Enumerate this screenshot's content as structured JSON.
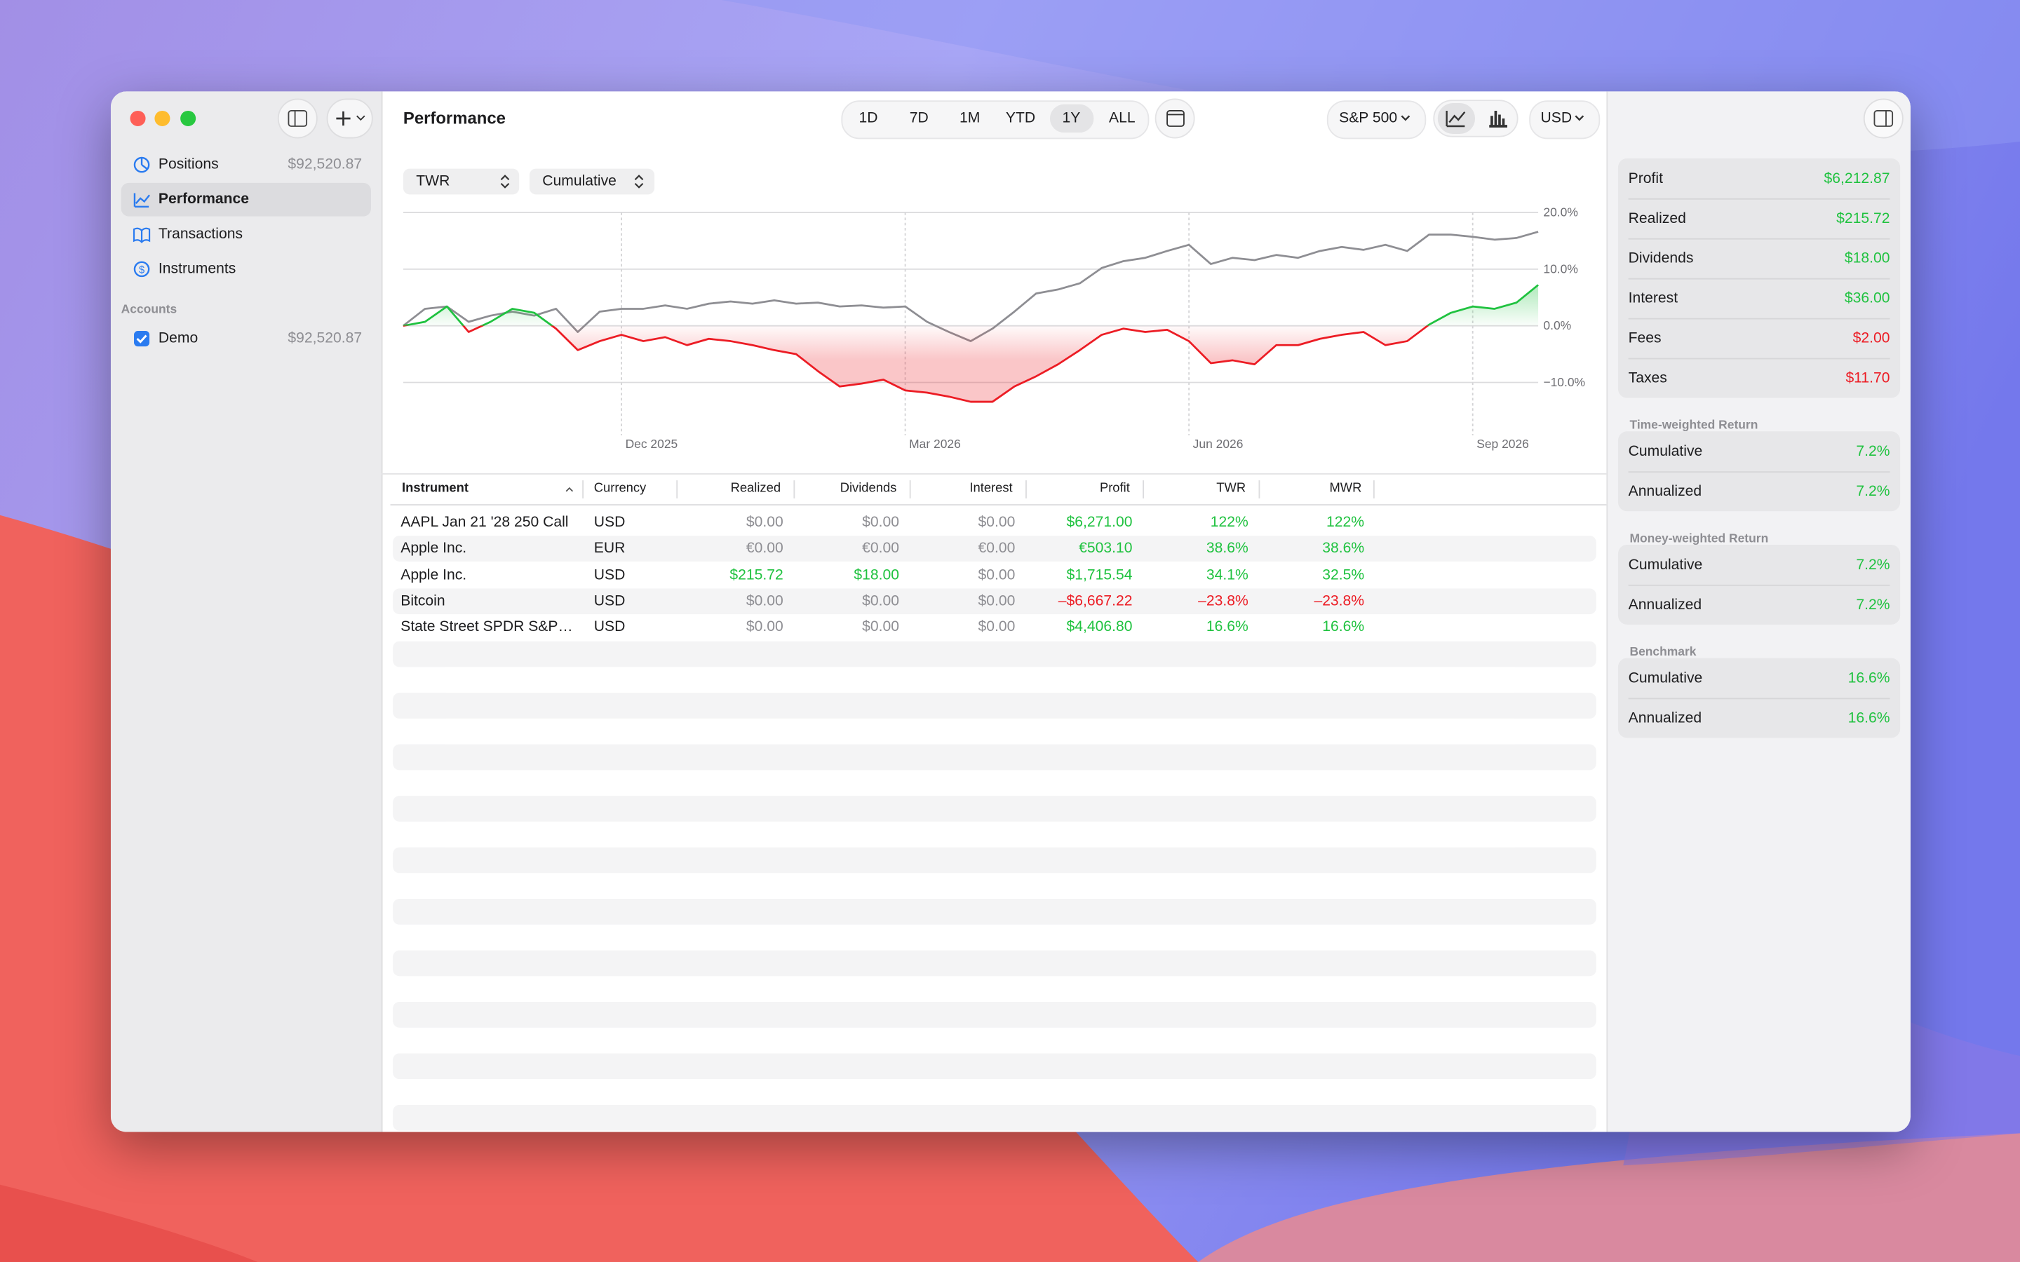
{
  "sidebar": {
    "nav": [
      {
        "label": "Positions",
        "value": "$92,520.87"
      },
      {
        "label": "Performance",
        "selected": true
      },
      {
        "label": "Transactions"
      },
      {
        "label": "Instruments"
      }
    ],
    "accounts_heading": "Accounts",
    "accounts": [
      {
        "label": "Demo",
        "value": "$92,520.87",
        "checked": true
      }
    ]
  },
  "toolbar": {
    "title": "Performance",
    "ranges": [
      {
        "label": "1D"
      },
      {
        "label": "7D"
      },
      {
        "label": "1M"
      },
      {
        "label": "YTD"
      },
      {
        "label": "1Y",
        "selected": true
      },
      {
        "label": "ALL"
      }
    ],
    "benchmark": "S&P 500",
    "currency": "USD"
  },
  "controls": {
    "metric": "TWR",
    "mode": "Cumulative"
  },
  "chart_data": {
    "type": "line",
    "xlim": [
      0,
      52
    ],
    "xticks": [
      {
        "value": 10,
        "label": "Dec 2025"
      },
      {
        "value": 23,
        "label": "Mar 2026"
      },
      {
        "value": 36,
        "label": "Jun 2026"
      },
      {
        "value": 49,
        "label": "Sep 2026"
      }
    ],
    "ylim": [
      -15,
      20
    ],
    "yticks": [
      {
        "value": 20,
        "label": "20.0%"
      },
      {
        "value": 10,
        "label": "10.0%"
      },
      {
        "value": 0,
        "label": "0.0%"
      },
      {
        "value": -10,
        "label": "−10.0%"
      }
    ],
    "grid": true,
    "x": [
      0,
      1,
      2,
      3,
      4,
      5,
      6,
      7,
      8,
      9,
      10,
      11,
      12,
      13,
      14,
      15,
      16,
      17,
      18,
      19,
      20,
      21,
      22,
      23,
      24,
      25,
      26,
      27,
      28,
      29,
      30,
      31,
      32,
      33,
      34,
      35,
      36,
      37,
      38,
      39,
      40,
      41,
      42,
      43,
      44,
      45,
      46,
      47,
      48,
      49,
      50,
      51,
      52
    ],
    "series": [
      {
        "color": "#8e8e93",
        "values": [
          0,
          3.0,
          3.4,
          0.7,
          1.8,
          2.5,
          1.8,
          3.0,
          -1.1,
          2.5,
          3.0,
          3.0,
          3.6,
          3.0,
          3.9,
          4.3,
          3.9,
          4.5,
          3.9,
          4.1,
          3.4,
          3.6,
          3.2,
          3.4,
          0.7,
          -1.1,
          -2.7,
          -0.5,
          2.5,
          5.7,
          6.4,
          7.5,
          10.2,
          11.4,
          12.0,
          13.2,
          14.3,
          10.9,
          12.0,
          11.6,
          12.5,
          12.0,
          13.2,
          13.9,
          13.4,
          14.3,
          13.2,
          16.1,
          16.1,
          15.7,
          15.2,
          15.5,
          16.6
        ]
      },
      {
        "color": "#1fc23f",
        "negative_color": "#ec1c24",
        "fill": true,
        "values": [
          0,
          0.7,
          3.4,
          -1.1,
          0.7,
          3.0,
          2.3,
          -0.5,
          -4.3,
          -2.7,
          -1.6,
          -2.7,
          -2.0,
          -3.4,
          -2.3,
          -2.7,
          -3.4,
          -4.3,
          -5.0,
          -8.0,
          -10.7,
          -10.2,
          -9.5,
          -11.4,
          -11.8,
          -12.5,
          -13.4,
          -13.4,
          -10.7,
          -8.9,
          -6.8,
          -4.3,
          -1.6,
          -0.5,
          -1.1,
          -0.7,
          -2.7,
          -6.6,
          -6.1,
          -6.8,
          -3.4,
          -3.4,
          -2.3,
          -1.6,
          -1.1,
          -3.4,
          -2.7,
          0.2,
          2.3,
          3.4,
          3.0,
          4.1,
          7.2
        ]
      }
    ]
  },
  "table": {
    "columns": [
      "Instrument",
      "Currency",
      "Realized",
      "Dividends",
      "Interest",
      "Profit",
      "TWR",
      "MWR"
    ],
    "sort_column": "Instrument",
    "rows": [
      [
        "AAPL Jan 21 '28 250 Call",
        "USD",
        "$0.00",
        "$0.00",
        "$0.00",
        "$6,271.00",
        "122%",
        "122%"
      ],
      [
        "Apple Inc.",
        "EUR",
        "€0.00",
        "€0.00",
        "€0.00",
        "€503.10",
        "38.6%",
        "38.6%"
      ],
      [
        "Apple Inc.",
        "USD",
        "$215.72",
        "$18.00",
        "$0.00",
        "$1,715.54",
        "34.1%",
        "32.5%"
      ],
      [
        "Bitcoin",
        "USD",
        "$0.00",
        "$0.00",
        "$0.00",
        "–$6,667.22",
        "–23.8%",
        "–23.8%"
      ],
      [
        "State Street SPDR S&P…",
        "USD",
        "$0.00",
        "$0.00",
        "$0.00",
        "$4,406.80",
        "16.6%",
        "16.6%"
      ]
    ]
  },
  "summary": {
    "groups": [
      {
        "items": [
          {
            "label": "Profit",
            "value": "$6,212.87",
            "color": "#1fc23f"
          },
          {
            "label": "Realized",
            "value": "$215.72",
            "color": "#1fc23f"
          },
          {
            "label": "Dividends",
            "value": "$18.00",
            "color": "#1fc23f"
          },
          {
            "label": "Interest",
            "value": "$36.00",
            "color": "#1fc23f"
          },
          {
            "label": "Fees",
            "value": "$2.00",
            "color": "#ec1c24"
          },
          {
            "label": "Taxes",
            "value": "$11.70",
            "color": "#ec1c24"
          }
        ]
      },
      {
        "heading": "Time-weighted Return",
        "items": [
          {
            "label": "Cumulative",
            "value": "7.2%",
            "color": "#1fc23f"
          },
          {
            "label": "Annualized",
            "value": "7.2%",
            "color": "#1fc23f"
          }
        ]
      },
      {
        "heading": "Money-weighted Return",
        "items": [
          {
            "label": "Cumulative",
            "value": "7.2%",
            "color": "#1fc23f"
          },
          {
            "label": "Annualized",
            "value": "7.2%",
            "color": "#1fc23f"
          }
        ]
      },
      {
        "heading": "Benchmark",
        "items": [
          {
            "label": "Cumulative",
            "value": "16.6%",
            "color": "#1fc23f"
          },
          {
            "label": "Annualized",
            "value": "16.6%",
            "color": "#1fc23f"
          }
        ]
      }
    ]
  }
}
